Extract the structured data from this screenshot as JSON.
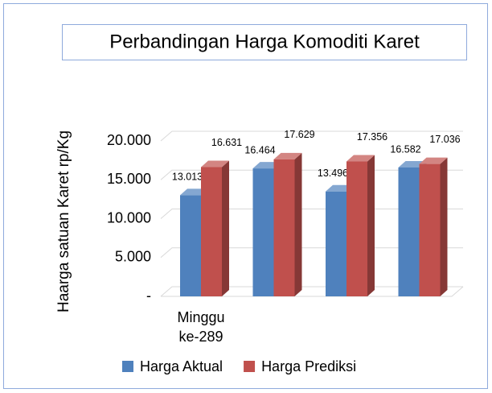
{
  "chart_data": {
    "type": "bar3d",
    "title": "Perbandingan Harga Komoditi Karet",
    "y_label": "Haarga satuan Karet rp/Kg",
    "categories": [
      "Minggu ke-289",
      null,
      null,
      null
    ],
    "series": [
      {
        "name": "Harga Aktual",
        "color": "#4f81bd",
        "values": [
          13013,
          16464,
          13496,
          16582
        ],
        "value_labels": [
          "13.013",
          "16.464",
          "13.496",
          "16.582"
        ]
      },
      {
        "name": "Harga Prediksi",
        "color": "#c0504d",
        "values": [
          16631,
          17629,
          17356,
          17036
        ],
        "value_labels": [
          "16.631",
          "17.629",
          "17.356",
          "17.036"
        ]
      }
    ],
    "ylim": [
      0,
      20000
    ],
    "yticks": [
      {
        "value": 0,
        "label": "-"
      },
      {
        "value": 5000,
        "label": "5.000"
      },
      {
        "value": 10000,
        "label": "10.000"
      },
      {
        "value": 15000,
        "label": "15.000"
      },
      {
        "value": 20000,
        "label": "20.000"
      }
    ],
    "grid": true,
    "legend": "bottom"
  }
}
